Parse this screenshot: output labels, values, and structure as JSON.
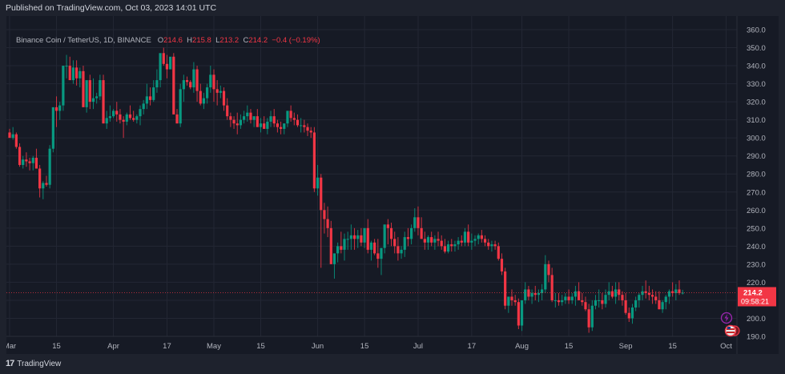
{
  "header": {
    "published": "Published on TradingView.com, Oct 03, 2023 14:01 UTC"
  },
  "legend": {
    "symbol": "Binance Coin / TetherUS, 1D, BINANCE",
    "o_label": "O",
    "o": "214.6",
    "h_label": "H",
    "h": "215.8",
    "l_label": "L",
    "l": "213.2",
    "c_label": "C",
    "c": "214.2",
    "change": "−0.4 (−0.19%)"
  },
  "price_tag": {
    "price": "214.2",
    "countdown": "09:58:21",
    "color": "#f23645"
  },
  "footer": {
    "brand": "TradingView",
    "logo": "17"
  },
  "colors": {
    "up": "#089981",
    "down": "#f23645",
    "bg": "#161a25",
    "grid": "#232734",
    "axis_text": "#b2b5be"
  },
  "chart_data": {
    "type": "candlestick",
    "title": "Binance Coin / TetherUS, 1D, BINANCE",
    "xlabel": "",
    "ylabel": "",
    "ylim": [
      190,
      360
    ],
    "y_ticks": [
      360,
      350,
      340,
      330,
      320,
      310,
      300,
      290,
      280,
      270,
      260,
      250,
      240,
      230,
      220,
      210,
      200,
      190
    ],
    "x_ticks": [
      {
        "label": "Mar",
        "day": 0
      },
      {
        "label": "15",
        "day": 14
      },
      {
        "label": "Apr",
        "day": 31
      },
      {
        "label": "17",
        "day": 47
      },
      {
        "label": "May",
        "day": 61
      },
      {
        "label": "15",
        "day": 75
      },
      {
        "label": "Jun",
        "day": 92
      },
      {
        "label": "15",
        "day": 106
      },
      {
        "label": "Jul",
        "day": 122
      },
      {
        "label": "17",
        "day": 138
      },
      {
        "label": "Aug",
        "day": 153
      },
      {
        "label": "15",
        "day": 167
      },
      {
        "label": "Sep",
        "day": 184
      },
      {
        "label": "15",
        "day": 198
      },
      {
        "label": "Oct",
        "day": 214
      }
    ],
    "grid": true,
    "last_price": 214.2,
    "ohlc": [
      [
        303,
        305,
        301,
        300
      ],
      [
        300,
        306,
        299,
        302
      ],
      [
        302,
        303,
        294,
        295
      ],
      [
        295,
        297,
        284,
        285
      ],
      [
        285,
        290,
        283,
        288
      ],
      [
        288,
        292,
        284,
        287
      ],
      [
        287,
        289,
        282,
        286
      ],
      [
        286,
        290,
        282,
        289
      ],
      [
        289,
        294,
        283,
        283
      ],
      [
        283,
        285,
        267,
        272
      ],
      [
        272,
        276,
        266,
        275
      ],
      [
        275,
        279,
        273,
        274
      ],
      [
        274,
        296,
        272,
        294
      ],
      [
        294,
        316,
        292,
        317
      ],
      [
        317,
        323,
        306,
        315
      ],
      [
        315,
        320,
        310,
        318
      ],
      [
        318,
        330,
        315,
        340
      ],
      [
        340,
        346,
        333,
        340
      ],
      [
        340,
        345,
        333,
        332
      ],
      [
        332,
        343,
        330,
        339
      ],
      [
        339,
        343,
        329,
        333
      ],
      [
        333,
        339,
        328,
        337
      ],
      [
        337,
        340,
        318,
        317
      ],
      [
        317,
        331,
        314,
        332
      ],
      [
        332,
        335,
        316,
        320
      ],
      [
        320,
        333,
        316,
        322
      ],
      [
        322,
        325,
        319,
        323
      ],
      [
        323,
        335,
        321,
        332
      ],
      [
        332,
        335,
        308,
        308
      ],
      [
        308,
        315,
        305,
        311
      ],
      [
        311,
        318,
        309,
        312
      ],
      [
        312,
        316,
        311,
        315
      ],
      [
        315,
        320,
        309,
        313
      ],
      [
        313,
        316,
        308,
        310
      ],
      [
        310,
        312,
        300,
        309
      ],
      [
        309,
        314,
        307,
        313
      ],
      [
        313,
        318,
        310,
        311
      ],
      [
        311,
        315,
        309,
        310
      ],
      [
        310,
        313,
        308,
        312
      ],
      [
        312,
        318,
        307,
        316
      ],
      [
        316,
        321,
        313,
        319
      ],
      [
        319,
        330,
        316,
        323
      ],
      [
        323,
        328,
        318,
        321
      ],
      [
        321,
        332,
        320,
        328
      ],
      [
        328,
        338,
        325,
        332
      ],
      [
        332,
        336,
        328,
        347
      ],
      [
        347,
        350,
        340,
        341
      ],
      [
        341,
        346,
        333,
        338
      ],
      [
        338,
        344,
        338,
        345
      ],
      [
        345,
        347,
        320,
        313
      ],
      [
        313,
        316,
        308,
        308
      ],
      [
        308,
        330,
        306,
        327
      ],
      [
        327,
        335,
        320,
        332
      ],
      [
        332,
        334,
        329,
        331
      ],
      [
        331,
        332,
        327,
        328
      ],
      [
        328,
        342,
        325,
        338
      ],
      [
        338,
        340,
        320,
        326
      ],
      [
        326,
        330,
        318,
        319
      ],
      [
        319,
        325,
        316,
        322
      ],
      [
        322,
        330,
        319,
        328
      ],
      [
        328,
        340,
        325,
        335
      ],
      [
        335,
        338,
        320,
        327
      ],
      [
        327,
        332,
        318,
        325
      ],
      [
        325,
        329,
        322,
        326
      ],
      [
        326,
        328,
        315,
        318
      ],
      [
        318,
        322,
        310,
        312
      ],
      [
        312,
        314,
        306,
        310
      ],
      [
        310,
        312,
        305,
        308
      ],
      [
        308,
        314,
        302,
        307
      ],
      [
        307,
        313,
        305,
        310
      ],
      [
        310,
        315,
        308,
        312
      ],
      [
        312,
        318,
        309,
        314
      ],
      [
        314,
        316,
        308,
        310
      ],
      [
        310,
        312,
        306,
        312
      ],
      [
        312,
        316,
        306,
        306
      ],
      [
        306,
        311,
        303,
        308
      ],
      [
        308,
        312,
        305,
        305
      ],
      [
        305,
        311,
        302,
        309
      ],
      [
        309,
        315,
        306,
        312
      ],
      [
        312,
        316,
        306,
        308
      ],
      [
        308,
        310,
        303,
        306
      ],
      [
        306,
        309,
        302,
        305
      ],
      [
        305,
        308,
        302,
        308
      ],
      [
        308,
        315,
        306,
        315
      ],
      [
        315,
        318,
        309,
        311
      ],
      [
        311,
        314,
        307,
        310
      ],
      [
        310,
        313,
        306,
        307
      ],
      [
        307,
        311,
        303,
        307
      ],
      [
        307,
        310,
        303,
        306
      ],
      [
        306,
        308,
        301,
        304
      ],
      [
        304,
        306,
        300,
        303
      ],
      [
        303,
        306,
        270,
        272
      ],
      [
        272,
        285,
        268,
        278
      ],
      [
        278,
        280,
        228,
        260
      ],
      [
        260,
        264,
        247,
        255
      ],
      [
        255,
        262,
        245,
        250
      ],
      [
        250,
        254,
        240,
        230
      ],
      [
        230,
        235,
        222,
        236
      ],
      [
        236,
        242,
        231,
        240
      ],
      [
        240,
        248,
        236,
        238
      ],
      [
        238,
        247,
        232,
        244
      ],
      [
        244,
        248,
        238,
        244
      ],
      [
        244,
        252,
        238,
        246
      ],
      [
        246,
        250,
        238,
        244
      ],
      [
        244,
        249,
        239,
        246
      ],
      [
        246,
        250,
        240,
        242
      ],
      [
        242,
        250,
        239,
        250
      ],
      [
        250,
        255,
        236,
        238
      ],
      [
        238,
        243,
        232,
        242
      ],
      [
        242,
        244,
        235,
        236
      ],
      [
        236,
        244,
        228,
        233
      ],
      [
        233,
        238,
        224,
        239
      ],
      [
        239,
        252,
        236,
        252
      ],
      [
        252,
        255,
        241,
        250
      ],
      [
        250,
        253,
        240,
        244
      ],
      [
        244,
        248,
        236,
        240
      ],
      [
        240,
        245,
        232,
        236
      ],
      [
        236,
        240,
        233,
        238
      ],
      [
        238,
        248,
        234,
        245
      ],
      [
        245,
        250,
        240,
        244
      ],
      [
        244,
        252,
        241,
        250
      ],
      [
        250,
        261,
        248,
        256
      ],
      [
        256,
        262,
        246,
        250
      ],
      [
        250,
        256,
        244,
        244
      ],
      [
        244,
        248,
        238,
        242
      ],
      [
        242,
        246,
        238,
        245
      ],
      [
        245,
        248,
        240,
        242
      ],
      [
        242,
        246,
        238,
        244
      ],
      [
        244,
        248,
        240,
        243
      ],
      [
        243,
        246,
        238,
        240
      ],
      [
        240,
        244,
        236,
        237
      ],
      [
        237,
        243,
        236,
        241
      ],
      [
        241,
        244,
        237,
        240
      ],
      [
        240,
        243,
        237,
        241
      ],
      [
        241,
        245,
        238,
        243
      ],
      [
        243,
        246,
        240,
        242
      ],
      [
        242,
        250,
        240,
        248
      ],
      [
        248,
        252,
        240,
        242
      ],
      [
        242,
        247,
        238,
        243
      ],
      [
        243,
        246,
        240,
        244
      ],
      [
        244,
        247,
        241,
        246
      ],
      [
        246,
        249,
        242,
        244
      ],
      [
        244,
        246,
        240,
        242
      ],
      [
        242,
        244,
        238,
        240
      ],
      [
        240,
        243,
        237,
        241
      ],
      [
        241,
        243,
        238,
        240
      ],
      [
        240,
        242,
        232,
        233
      ],
      [
        233,
        236,
        224,
        226
      ],
      [
        226,
        228,
        205,
        207
      ],
      [
        207,
        212,
        203,
        212
      ],
      [
        212,
        216,
        207,
        210
      ],
      [
        210,
        213,
        207,
        209
      ],
      [
        209,
        211,
        194,
        196
      ],
      [
        196,
        210,
        193,
        210
      ],
      [
        210,
        220,
        208,
        216
      ],
      [
        216,
        218,
        210,
        212
      ],
      [
        212,
        216,
        208,
        214
      ],
      [
        214,
        218,
        210,
        213
      ],
      [
        213,
        216,
        209,
        214
      ],
      [
        214,
        219,
        210,
        216
      ],
      [
        216,
        235,
        214,
        230
      ],
      [
        230,
        232,
        220,
        224
      ],
      [
        224,
        228,
        209,
        210
      ],
      [
        210,
        214,
        206,
        210
      ],
      [
        210,
        214,
        207,
        209
      ],
      [
        209,
        213,
        207,
        210
      ],
      [
        210,
        214,
        208,
        212
      ],
      [
        212,
        216,
        208,
        210
      ],
      [
        210,
        214,
        208,
        212
      ],
      [
        212,
        218,
        207,
        215
      ],
      [
        215,
        220,
        212,
        210
      ],
      [
        210,
        214,
        207,
        209
      ],
      [
        209,
        212,
        204,
        205
      ],
      [
        205,
        208,
        192,
        195
      ],
      [
        195,
        210,
        193,
        207
      ],
      [
        207,
        213,
        205,
        210
      ],
      [
        210,
        216,
        206,
        210
      ],
      [
        210,
        214,
        205,
        208
      ],
      [
        208,
        216,
        206,
        213
      ],
      [
        213,
        220,
        210,
        215
      ],
      [
        215,
        218,
        211,
        212
      ],
      [
        212,
        220,
        208,
        216
      ],
      [
        216,
        220,
        210,
        213
      ],
      [
        213,
        215,
        207,
        210
      ],
      [
        210,
        214,
        202,
        203
      ],
      [
        203,
        206,
        198,
        200
      ],
      [
        200,
        208,
        197,
        206
      ],
      [
        206,
        212,
        204,
        210
      ],
      [
        210,
        214,
        206,
        213
      ],
      [
        213,
        218,
        210,
        215
      ],
      [
        215,
        221,
        211,
        214
      ],
      [
        214,
        218,
        210,
        213
      ],
      [
        213,
        216,
        208,
        212
      ],
      [
        212,
        215,
        208,
        210
      ],
      [
        210,
        215,
        205,
        205
      ],
      [
        205,
        210,
        203,
        209
      ],
      [
        209,
        213,
        205,
        212
      ],
      [
        212,
        216,
        208,
        215
      ],
      [
        215,
        220,
        212,
        214
      ],
      [
        214,
        219,
        210,
        216
      ],
      [
        216,
        221,
        213,
        214
      ],
      [
        214,
        215.8,
        213.2,
        214.2
      ]
    ]
  }
}
